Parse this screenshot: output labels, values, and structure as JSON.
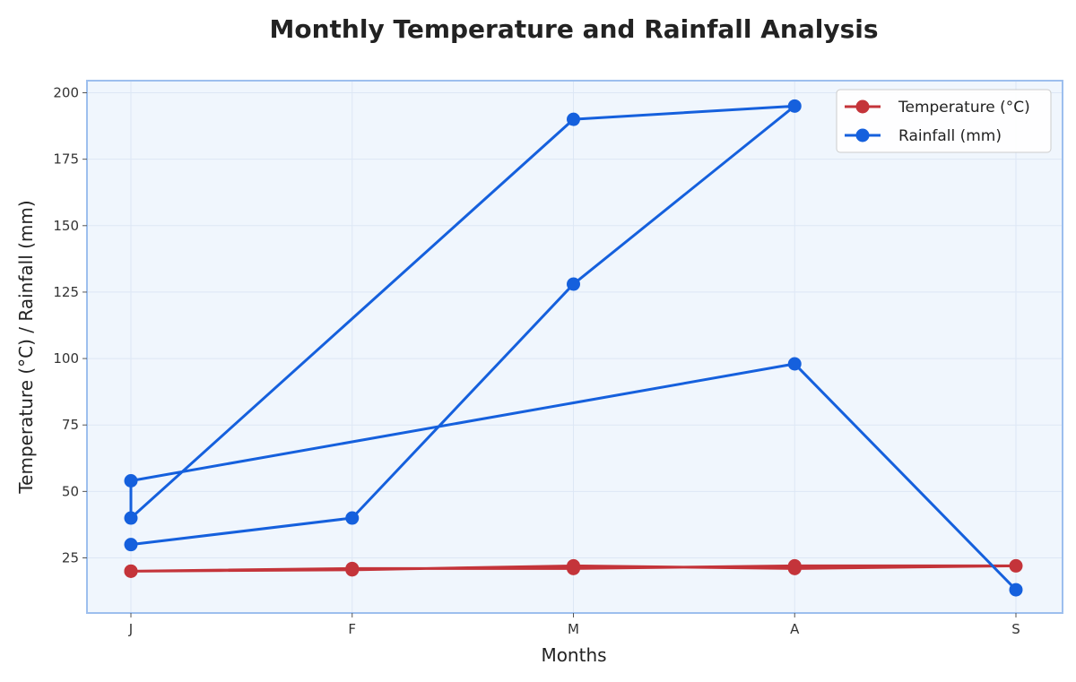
{
  "chart_data": {
    "type": "line",
    "title": "Monthly Temperature and Rainfall Analysis",
    "xlabel": "Months",
    "ylabel": "Temperature (°C) / Rainfall (mm)",
    "categories": [
      "J",
      "F",
      "M",
      "A",
      "S"
    ],
    "ylim": [
      4,
      204
    ],
    "yticks": [
      25,
      50,
      75,
      100,
      125,
      150,
      175,
      200
    ],
    "grid": true,
    "legend_position": "top-right",
    "series": [
      {
        "name": "Temperature (°C)",
        "color": "#c4343a",
        "marker": "circle",
        "points": [
          {
            "x": "J",
            "y": 20
          },
          {
            "x": "F",
            "y": 20.5
          },
          {
            "x": "M",
            "y": 22
          },
          {
            "x": "A",
            "y": 21
          },
          {
            "x": "S",
            "y": 22
          },
          {
            "x": "A",
            "y": 22
          },
          {
            "x": "M",
            "y": 21
          },
          {
            "x": "F",
            "y": 21
          },
          {
            "x": "J",
            "y": 20
          }
        ]
      },
      {
        "name": "Rainfall (mm)",
        "color": "#1560dd",
        "marker": "circle",
        "points": [
          {
            "x": "J",
            "y": 30
          },
          {
            "x": "F",
            "y": 40
          },
          {
            "x": "M",
            "y": 128
          },
          {
            "x": "A",
            "y": 195
          },
          {
            "x": "M",
            "y": 190
          },
          {
            "x": "J",
            "y": 40
          },
          {
            "x": "J",
            "y": 54
          },
          {
            "x": "A",
            "y": 98
          },
          {
            "x": "S",
            "y": 13
          }
        ]
      }
    ]
  },
  "colors": {
    "plot_background": "#f0f6fd",
    "plot_border": "#9dbfee",
    "grid": "#dde7f5"
  }
}
